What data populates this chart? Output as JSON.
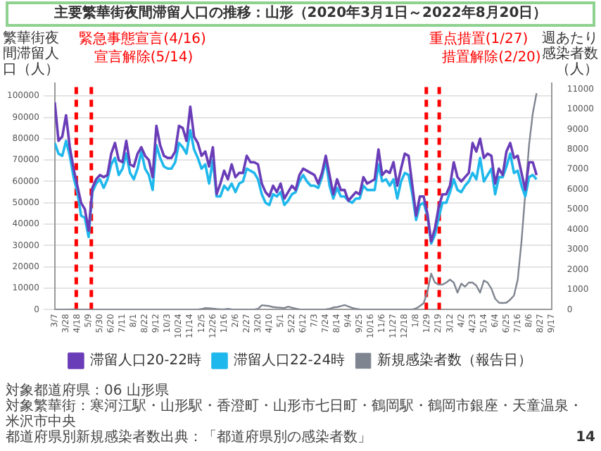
{
  "chart_data": {
    "type": "line",
    "title": "主要繁華街夜間滞留人口の推移：山形（2020年3月1日～2022年8月20日）",
    "ylabel": "繁華街夜間滞留人口（人）",
    "y2label": "週あたり感染者数（人）",
    "x": [
      "2020-03-07",
      "2020-03-14",
      "2020-03-21",
      "2020-03-28",
      "2020-04-04",
      "2020-04-11",
      "2020-04-18",
      "2020-04-25",
      "2020-05-02",
      "2020-05-09",
      "2020-05-16",
      "2020-05-23",
      "2020-05-30",
      "2020-06-06",
      "2020-06-13",
      "2020-06-20",
      "2020-06-27",
      "2020-07-04",
      "2020-07-11",
      "2020-07-18",
      "2020-07-25",
      "2020-08-01",
      "2020-08-08",
      "2020-08-15",
      "2020-08-22",
      "2020-08-29",
      "2020-09-05",
      "2020-09-12",
      "2020-09-19",
      "2020-09-26",
      "2020-10-03",
      "2020-10-10",
      "2020-10-17",
      "2020-10-24",
      "2020-10-31",
      "2020-11-07",
      "2020-11-14",
      "2020-11-21",
      "2020-11-28",
      "2020-12-05",
      "2020-12-12",
      "2020-12-19",
      "2020-12-26",
      "2021-01-02",
      "2021-01-09",
      "2021-01-16",
      "2021-01-23",
      "2021-01-30",
      "2021-02-06",
      "2021-02-13",
      "2021-02-20",
      "2021-02-27",
      "2021-03-06",
      "2021-03-13",
      "2021-03-20",
      "2021-03-27",
      "2021-04-03",
      "2021-04-10",
      "2021-04-17",
      "2021-04-24",
      "2021-05-01",
      "2021-05-08",
      "2021-05-15",
      "2021-05-22",
      "2021-05-29",
      "2021-06-05",
      "2021-06-12",
      "2021-06-19",
      "2021-06-26",
      "2021-07-03",
      "2021-07-10",
      "2021-07-17",
      "2021-07-24",
      "2021-07-31",
      "2021-08-07",
      "2021-08-14",
      "2021-08-21",
      "2021-08-28",
      "2021-09-04",
      "2021-09-11",
      "2021-09-18",
      "2021-09-25",
      "2021-10-02",
      "2021-10-09",
      "2021-10-16",
      "2021-10-23",
      "2021-10-30",
      "2021-11-06",
      "2021-11-13",
      "2021-11-20",
      "2021-11-27",
      "2021-12-04",
      "2021-12-11",
      "2021-12-18",
      "2021-12-25",
      "2022-01-01",
      "2022-01-08",
      "2022-01-15",
      "2022-01-22",
      "2022-01-29",
      "2022-02-05",
      "2022-02-12",
      "2022-02-19",
      "2022-02-26",
      "2022-03-05",
      "2022-03-12",
      "2022-03-19",
      "2022-03-26",
      "2022-04-02",
      "2022-04-09",
      "2022-04-16",
      "2022-04-23",
      "2022-04-30",
      "2022-05-07",
      "2022-05-14",
      "2022-05-21",
      "2022-05-28",
      "2022-06-04",
      "2022-06-11",
      "2022-06-18",
      "2022-06-25",
      "2022-07-02",
      "2022-07-09",
      "2022-07-16",
      "2022-07-23",
      "2022-07-30",
      "2022-08-06",
      "2022-08-13",
      "2022-08-20"
    ],
    "series": [
      {
        "name": "滞留人口20-22時",
        "color": "#6a3db8",
        "axis": "y",
        "values": [
          97000,
          79000,
          81000,
          91000,
          76000,
          66000,
          58000,
          50000,
          47000,
          37000,
          57000,
          61000,
          63000,
          62000,
          63000,
          73000,
          78000,
          70000,
          69000,
          79000,
          68000,
          67000,
          73000,
          76000,
          72000,
          70000,
          62000,
          86000,
          77000,
          72000,
          71000,
          71000,
          74000,
          86000,
          85000,
          79000,
          95000,
          81000,
          78000,
          72000,
          74000,
          67000,
          76000,
          54000,
          59000,
          65000,
          61000,
          68000,
          62000,
          64000,
          64000,
          72000,
          69000,
          69000,
          68000,
          59000,
          55000,
          53000,
          58000,
          55000,
          59000,
          52000,
          55000,
          58000,
          56000,
          63000,
          66000,
          65000,
          64000,
          63000,
          59000,
          64000,
          72000,
          63000,
          54000,
          61000,
          56000,
          56000,
          51000,
          53000,
          55000,
          54000,
          62000,
          59000,
          60000,
          61000,
          75000,
          63000,
          65000,
          64000,
          69000,
          58000,
          66000,
          73000,
          72000,
          58000,
          44000,
          53000,
          53000,
          45000,
          32000,
          38000,
          48000,
          54000,
          54000,
          58000,
          69000,
          62000,
          60000,
          62000,
          64000,
          78000,
          74000,
          80000,
          71000,
          73000,
          72000,
          59000,
          66000,
          63000,
          74000,
          78000,
          71000,
          72000,
          64000,
          56000,
          69000,
          69000,
          63000
        ]
      },
      {
        "name": "滞留人口22-24時",
        "color": "#1fb8ec",
        "axis": "y",
        "values": [
          78000,
          73000,
          72000,
          79000,
          72000,
          62000,
          55000,
          44000,
          43000,
          34000,
          55000,
          59000,
          61000,
          57000,
          61000,
          68000,
          71000,
          63000,
          66000,
          73000,
          64000,
          61000,
          66000,
          74000,
          66000,
          63000,
          56000,
          77000,
          71000,
          67000,
          66000,
          66000,
          69000,
          78000,
          76000,
          73000,
          84000,
          75000,
          71000,
          66000,
          68000,
          59000,
          70000,
          53000,
          53000,
          58000,
          56000,
          59000,
          55000,
          59000,
          60000,
          66000,
          65000,
          64000,
          61000,
          54000,
          50000,
          49000,
          54000,
          53000,
          55000,
          49000,
          51000,
          54000,
          55000,
          60000,
          63000,
          60000,
          58000,
          58000,
          57000,
          62000,
          70000,
          58000,
          52000,
          57000,
          53000,
          53000,
          51000,
          50000,
          52000,
          52000,
          58000,
          56000,
          56000,
          56000,
          68000,
          60000,
          61000,
          58000,
          61000,
          52000,
          60000,
          64000,
          63000,
          54000,
          42000,
          49000,
          50000,
          44000,
          31000,
          35000,
          43000,
          50000,
          50000,
          55000,
          61000,
          56000,
          55000,
          58000,
          60000,
          64000,
          61000,
          71000,
          60000,
          63000,
          66000,
          54000,
          62000,
          62000,
          67000,
          73000,
          64000,
          65000,
          58000,
          53000,
          62000,
          63000,
          61000
        ]
      },
      {
        "name": "新規感染者数（報告日）",
        "color": "#7f8590",
        "axis": "y2",
        "values": [
          0,
          0,
          0,
          0,
          10,
          20,
          10,
          0,
          0,
          0,
          0,
          0,
          0,
          0,
          0,
          0,
          0,
          0,
          0,
          0,
          0,
          0,
          0,
          0,
          0,
          0,
          0,
          0,
          0,
          0,
          0,
          0,
          0,
          0,
          0,
          0,
          0,
          0,
          10,
          30,
          80,
          70,
          50,
          30,
          20,
          20,
          40,
          20,
          10,
          10,
          10,
          10,
          10,
          10,
          40,
          220,
          200,
          180,
          130,
          110,
          100,
          80,
          150,
          100,
          50,
          20,
          10,
          10,
          10,
          10,
          10,
          10,
          20,
          40,
          110,
          130,
          180,
          230,
          160,
          90,
          40,
          20,
          10,
          10,
          10,
          10,
          10,
          10,
          10,
          10,
          10,
          10,
          10,
          10,
          10,
          10,
          60,
          180,
          320,
          900,
          1800,
          1350,
          1250,
          1250,
          1350,
          1500,
          1350,
          850,
          1300,
          1150,
          1350,
          1350,
          1200,
          850,
          1450,
          1350,
          1050,
          550,
          350,
          330,
          350,
          500,
          700,
          1500,
          3400,
          5800,
          8200,
          9800,
          10800
        ]
      }
    ],
    "xlim": [
      "2020-03-07",
      "2022-09-17"
    ],
    "xticks": [
      {
        "value": "2020-03-07",
        "label": "3/7"
      },
      {
        "value": "2020-03-28",
        "label": "3/28"
      },
      {
        "value": "2020-04-18",
        "label": "4/18"
      },
      {
        "value": "2020-05-09",
        "label": "5/9"
      },
      {
        "value": "2020-05-30",
        "label": "5/30"
      },
      {
        "value": "2020-06-20",
        "label": "6/20"
      },
      {
        "value": "2020-07-11",
        "label": "7/11"
      },
      {
        "value": "2020-08-01",
        "label": "8/1"
      },
      {
        "value": "2020-08-22",
        "label": "8/22"
      },
      {
        "value": "2020-09-12",
        "label": "9/12"
      },
      {
        "value": "2020-10-03",
        "label": "10/3"
      },
      {
        "value": "2020-10-24",
        "label": "10/24"
      },
      {
        "value": "2020-11-14",
        "label": "11/14"
      },
      {
        "value": "2020-12-05",
        "label": "12/5"
      },
      {
        "value": "2020-12-26",
        "label": "12/26"
      },
      {
        "value": "2021-01-16",
        "label": "1/16"
      },
      {
        "value": "2021-02-06",
        "label": "2/6"
      },
      {
        "value": "2021-02-27",
        "label": "2/27"
      },
      {
        "value": "2021-03-20",
        "label": "3/20"
      },
      {
        "value": "2021-04-10",
        "label": "4/10"
      },
      {
        "value": "2021-05-01",
        "label": "5/1"
      },
      {
        "value": "2021-05-22",
        "label": "5/22"
      },
      {
        "value": "2021-06-12",
        "label": "6/12"
      },
      {
        "value": "2021-07-03",
        "label": "7/3"
      },
      {
        "value": "2021-07-24",
        "label": "7/24"
      },
      {
        "value": "2021-08-14",
        "label": "8/14"
      },
      {
        "value": "2021-09-04",
        "label": "9/4"
      },
      {
        "value": "2021-09-25",
        "label": "9/25"
      },
      {
        "value": "2021-10-16",
        "label": "10/16"
      },
      {
        "value": "2021-11-06",
        "label": "11/6"
      },
      {
        "value": "2021-11-27",
        "label": "11/27"
      },
      {
        "value": "2021-12-18",
        "label": "12/18"
      },
      {
        "value": "2022-01-08",
        "label": "1/8"
      },
      {
        "value": "2022-01-29",
        "label": "1/29"
      },
      {
        "value": "2022-02-19",
        "label": "2/19"
      },
      {
        "value": "2022-03-12",
        "label": "3/12"
      },
      {
        "value": "2022-04-02",
        "label": "4/2"
      },
      {
        "value": "2022-04-23",
        "label": "4/23"
      },
      {
        "value": "2022-05-14",
        "label": "5/14"
      },
      {
        "value": "2022-06-04",
        "label": "6/4"
      },
      {
        "value": "2022-06-25",
        "label": "6/25"
      },
      {
        "value": "2022-07-16",
        "label": "7/16"
      },
      {
        "value": "2022-08-06",
        "label": "8/6"
      },
      {
        "value": "2022-08-27",
        "label": "8/27"
      },
      {
        "value": "2022-09-17",
        "label": "9/17"
      }
    ],
    "ylim": [
      0,
      106000
    ],
    "yticks": [
      0,
      10000,
      20000,
      30000,
      40000,
      50000,
      60000,
      70000,
      80000,
      90000,
      100000
    ],
    "y2lim": [
      0,
      11300
    ],
    "y2ticks": [
      0,
      1000,
      2000,
      3000,
      4000,
      5000,
      6000,
      7000,
      8000,
      9000,
      10000,
      11000
    ],
    "ref_lines": [
      {
        "axis": "x",
        "value": "2020-04-16",
        "label": "緊急事態宣言(4/16)",
        "color": "#ff0000",
        "line_style": "dashed"
      },
      {
        "axis": "x",
        "value": "2020-05-14",
        "label": "宣言解除(5/14)",
        "color": "#ff0000",
        "line_style": "dashed"
      },
      {
        "axis": "x",
        "value": "2022-01-27",
        "label": "重点措置(1/27)",
        "color": "#ff0000",
        "line_style": "dashed"
      },
      {
        "axis": "x",
        "value": "2022-02-20",
        "label": "措置解除(2/20)",
        "color": "#ff0000",
        "line_style": "dashed"
      }
    ],
    "grid": "y",
    "legend": "bottom",
    "marker": "none",
    "line_style": "solid",
    "annotations": [
      "対象都道府県：06 山形県",
      "対象繁華街：寒河江駅・山形駅・香澄町・山形市七日町・鶴岡駅・鶴岡市銀座・天童温泉・米沢市中央",
      "都道府県別新規感染者数出典：「都道府県別の感染者数」",
      "14"
    ]
  }
}
